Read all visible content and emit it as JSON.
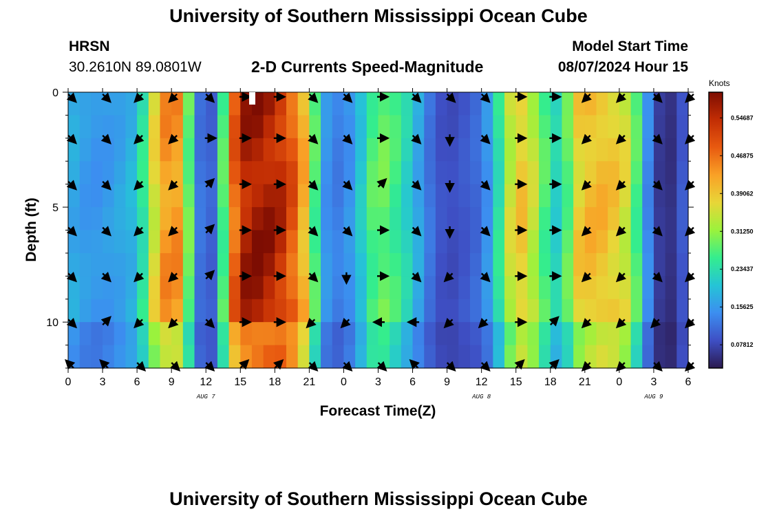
{
  "header": {
    "title": "University of Southern Mississippi Ocean Cube",
    "station": "HRSN",
    "coords": "30.2610N  89.0801W",
    "subtitle": "2-D Currents Speed-Magnitude",
    "model_label": "Model Start Time",
    "model_time": "08/07/2024 Hour 15"
  },
  "footer": {
    "title": "University of Southern Mississippi Ocean Cube"
  },
  "colors": {
    "ramp": [
      "#2b1a4f",
      "#3e4fc4",
      "#3c8ef0",
      "#25c4d6",
      "#34ed8e",
      "#9bf23c",
      "#e8d638",
      "#f9a126",
      "#e85a10",
      "#c22d04",
      "#7d0d02"
    ]
  },
  "chart_data": {
    "type": "heatmap",
    "xlabel": "Forecast Time(Z)",
    "ylabel": "Depth (ft)",
    "x_ticks": [
      "0",
      "3",
      "6",
      "9",
      "12",
      "15",
      "18",
      "21",
      "0",
      "3",
      "6",
      "9",
      "12",
      "15",
      "18",
      "21",
      "0",
      "3",
      "6"
    ],
    "x_tick_hours": [
      0,
      3,
      6,
      9,
      12,
      15,
      18,
      21,
      24,
      27,
      30,
      33,
      36,
      39,
      42,
      45,
      48,
      51,
      54
    ],
    "date_labels": [
      {
        "text": "AUG 7",
        "hour": 12
      },
      {
        "text": "AUG 8",
        "hour": 36
      },
      {
        "text": "AUG 9",
        "hour": 51
      }
    ],
    "xlim": [
      0,
      54
    ],
    "y_ticks": [
      "0",
      "5",
      "10"
    ],
    "y_tick_depths": [
      0,
      5,
      10
    ],
    "ylim": [
      0,
      12
    ],
    "colorbar": {
      "label": "Knots",
      "ticks": [
        "0.07812",
        "0.15625",
        "0.23437",
        "0.31250",
        "0.39062",
        "0.46875",
        "0.54687"
      ],
      "values": [
        0.07812,
        0.15625,
        0.23437,
        0.3125,
        0.39062,
        0.46875,
        0.54687
      ],
      "range": [
        0.03,
        0.6
      ]
    },
    "speed_profile_hours": [
      0,
      2,
      4,
      6,
      7,
      8,
      9,
      10,
      11,
      12,
      13,
      14,
      15,
      16,
      17,
      18,
      19,
      20,
      21,
      22,
      23,
      24,
      25,
      26,
      27,
      28,
      29,
      30,
      31,
      32,
      33,
      34,
      35,
      36,
      37,
      38,
      39,
      40,
      41,
      42,
      43,
      44,
      45,
      46,
      47,
      48,
      49,
      50,
      51,
      52,
      53,
      54
    ],
    "speed_profile_knots": [
      0.18,
      0.15,
      0.16,
      0.19,
      0.3,
      0.42,
      0.45,
      0.42,
      0.15,
      0.09,
      0.12,
      0.42,
      0.54,
      0.58,
      0.57,
      0.56,
      0.52,
      0.46,
      0.36,
      0.18,
      0.12,
      0.14,
      0.16,
      0.25,
      0.29,
      0.28,
      0.24,
      0.2,
      0.14,
      0.1,
      0.08,
      0.09,
      0.1,
      0.12,
      0.18,
      0.3,
      0.39,
      0.38,
      0.3,
      0.24,
      0.2,
      0.36,
      0.4,
      0.4,
      0.4,
      0.37,
      0.34,
      0.2,
      0.08,
      0.05,
      0.06,
      0.13
    ],
    "depth_levels_ft": [
      0,
      2,
      4,
      6,
      8,
      10,
      12
    ],
    "vector_hours": [
      0,
      3,
      6,
      9,
      12,
      15,
      18,
      21,
      24,
      27,
      30,
      33,
      36,
      39,
      42,
      45,
      48,
      51,
      54
    ],
    "vector_depths_ft": [
      0.2,
      2,
      4,
      6,
      8,
      10,
      12
    ],
    "vector_directions_deg": [
      [
        135,
        135,
        225,
        225,
        135,
        90,
        90,
        135,
        135,
        90,
        135,
        135,
        135,
        90,
        90,
        225,
        225,
        135,
        225
      ],
      [
        135,
        135,
        225,
        225,
        90,
        90,
        90,
        135,
        135,
        90,
        135,
        180,
        135,
        90,
        90,
        225,
        225,
        135,
        225
      ],
      [
        135,
        135,
        225,
        225,
        45,
        90,
        90,
        135,
        135,
        45,
        135,
        180,
        135,
        90,
        90,
        225,
        225,
        135,
        225
      ],
      [
        135,
        135,
        225,
        225,
        45,
        90,
        90,
        135,
        135,
        90,
        135,
        180,
        135,
        90,
        90,
        225,
        225,
        135,
        225
      ],
      [
        135,
        135,
        225,
        225,
        45,
        90,
        90,
        135,
        180,
        90,
        135,
        225,
        135,
        90,
        90,
        225,
        225,
        135,
        225
      ],
      [
        135,
        45,
        225,
        225,
        135,
        90,
        90,
        225,
        225,
        270,
        270,
        225,
        225,
        90,
        45,
        225,
        225,
        225,
        225
      ],
      [
        315,
        315,
        135,
        135,
        135,
        45,
        45,
        135,
        135,
        135,
        315,
        135,
        135,
        45,
        45,
        225,
        225,
        135,
        225
      ]
    ]
  }
}
